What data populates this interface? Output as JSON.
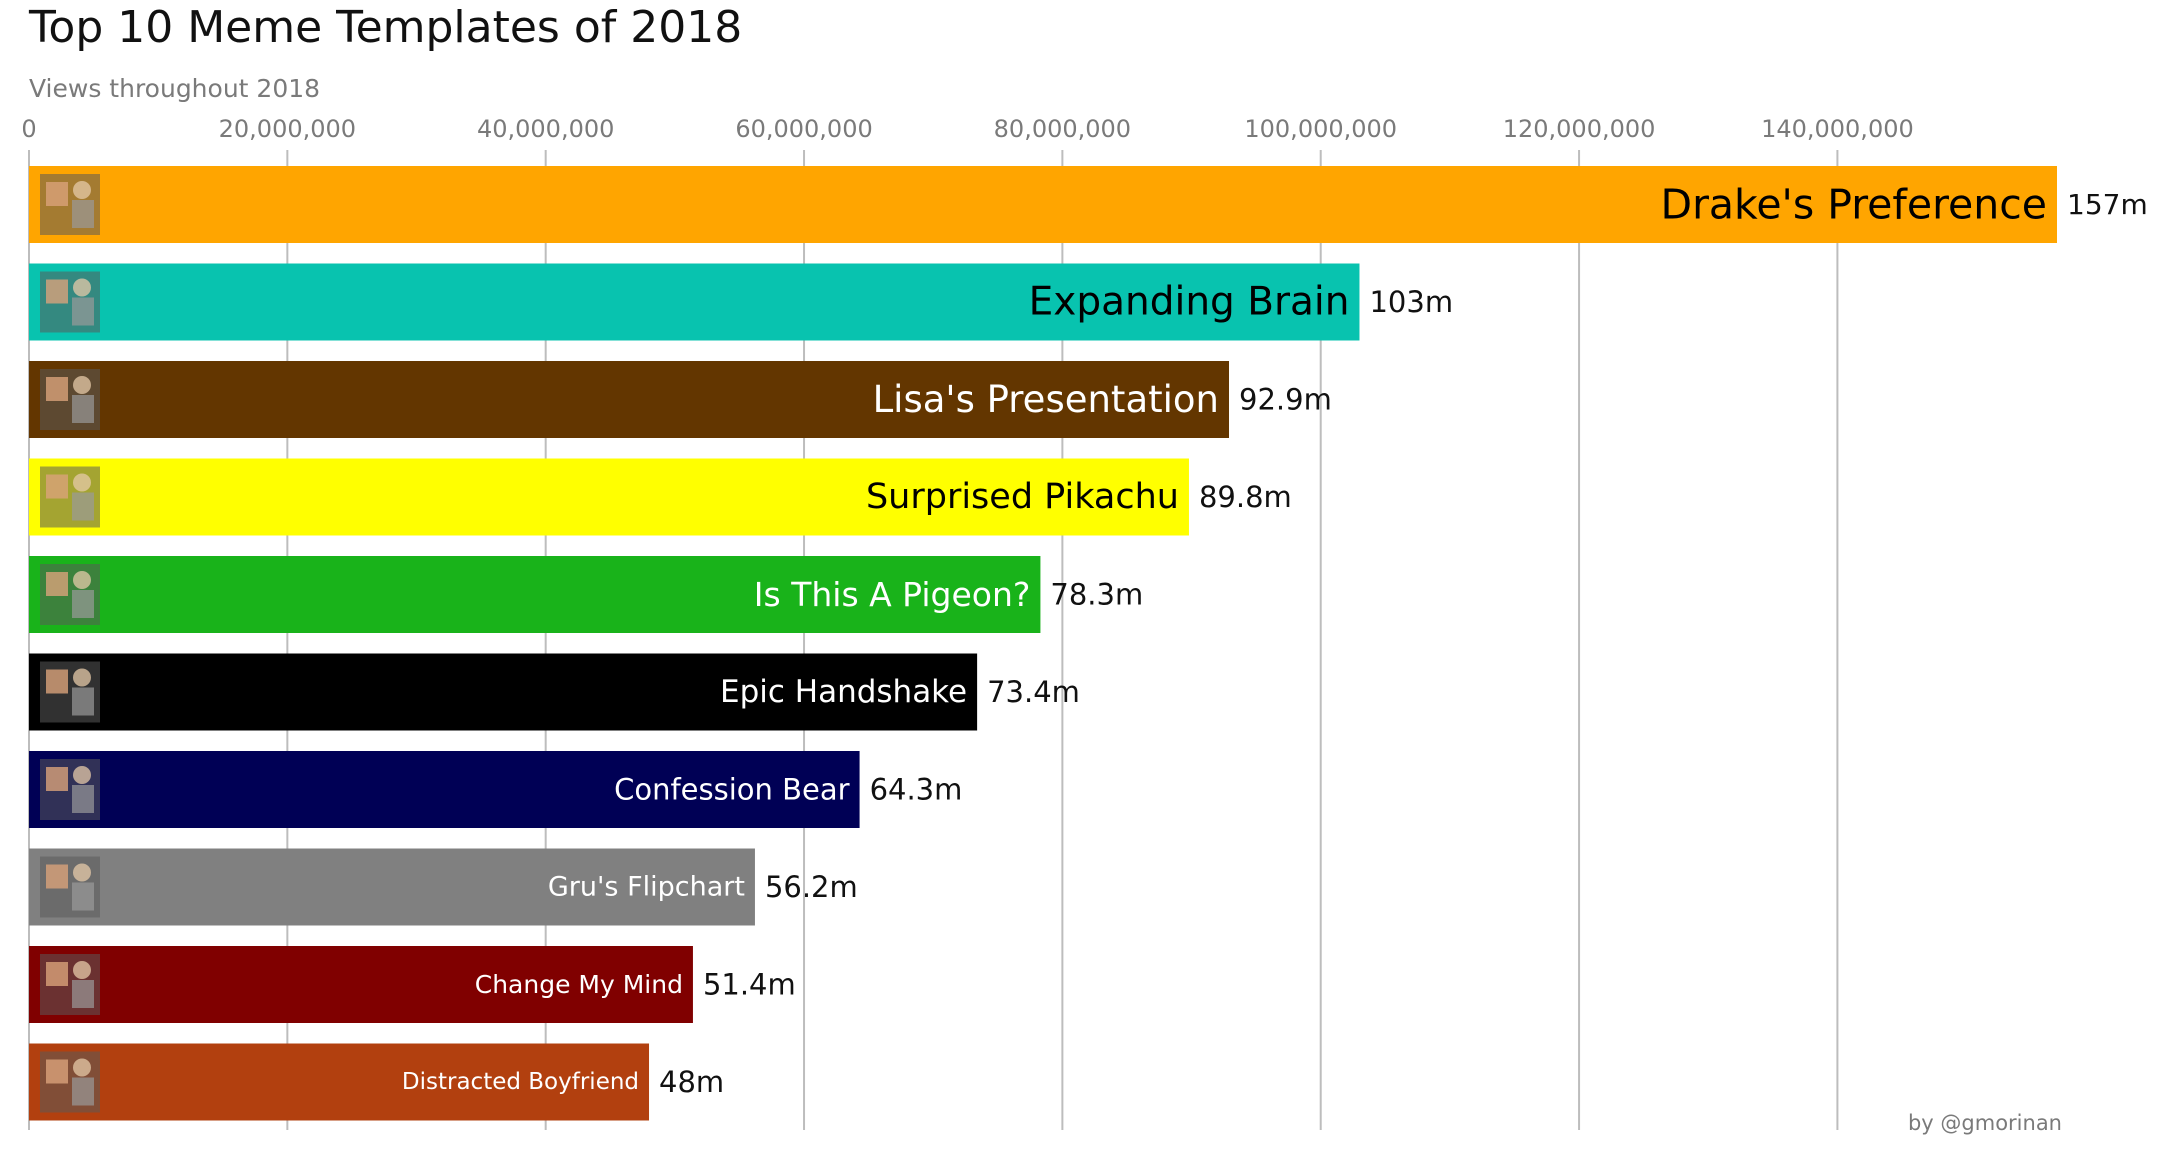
{
  "header": {
    "title": "Top 10 Meme Templates of 2018",
    "subtitle": "Views throughout 2018"
  },
  "footer": {
    "credit": "by @gmorinan"
  },
  "chart_data": {
    "type": "bar",
    "orientation": "horizontal",
    "title": "Top 10 Meme Templates of 2018",
    "subtitle": "Views throughout 2018",
    "xlabel": "",
    "ylabel": "",
    "xlim": [
      0,
      157000000
    ],
    "x_ticks": [
      0,
      20000000,
      40000000,
      60000000,
      80000000,
      100000000,
      120000000,
      140000000
    ],
    "x_tick_labels": [
      "0",
      "20,000,000",
      "40,000,000",
      "60,000,000",
      "80,000,000",
      "100,000,000",
      "120,000,000",
      "140,000,000"
    ],
    "axis_position": "top",
    "grid": true,
    "categories": [
      "Drake's Preference",
      "Expanding Brain",
      "Lisa's Presentation",
      "Surprised Pikachu",
      "Is This A Pigeon?",
      "Epic Handshake",
      "Confession Bear",
      "Gru's Flipchart",
      "Change My Mind",
      "Distracted Boyfriend"
    ],
    "values": [
      157000000,
      103000000,
      92900000,
      89800000,
      78300000,
      73400000,
      64300000,
      56200000,
      51400000,
      48000000
    ],
    "value_labels": [
      "157m",
      "103m",
      "92.9m",
      "89.8m",
      "78.3m",
      "73.4m",
      "64.3m",
      "56.2m",
      "51.4m",
      "48m"
    ],
    "colors": [
      "#FFA500",
      "#08C3AF",
      "#633600",
      "#FFFF00",
      "#19B31A",
      "#000000",
      "#000055",
      "#808080",
      "#800000",
      "#B2400F"
    ],
    "label_colors": [
      "#000000",
      "#000000",
      "#ffffff",
      "#000000",
      "#ffffff",
      "#ffffff",
      "#ffffff",
      "#ffffff",
      "#ffffff",
      "#ffffff"
    ],
    "thumbnails": [
      "drake-thumbnail",
      "expanding-brain-thumbnail",
      "lisa-presentation-thumbnail",
      "surprised-pikachu-thumbnail",
      "pigeon-thumbnail",
      "epic-handshake-thumbnail",
      "confession-bear-thumbnail",
      "gru-flipchart-thumbnail",
      "change-my-mind-thumbnail",
      "distracted-boyfriend-thumbnail"
    ]
  }
}
